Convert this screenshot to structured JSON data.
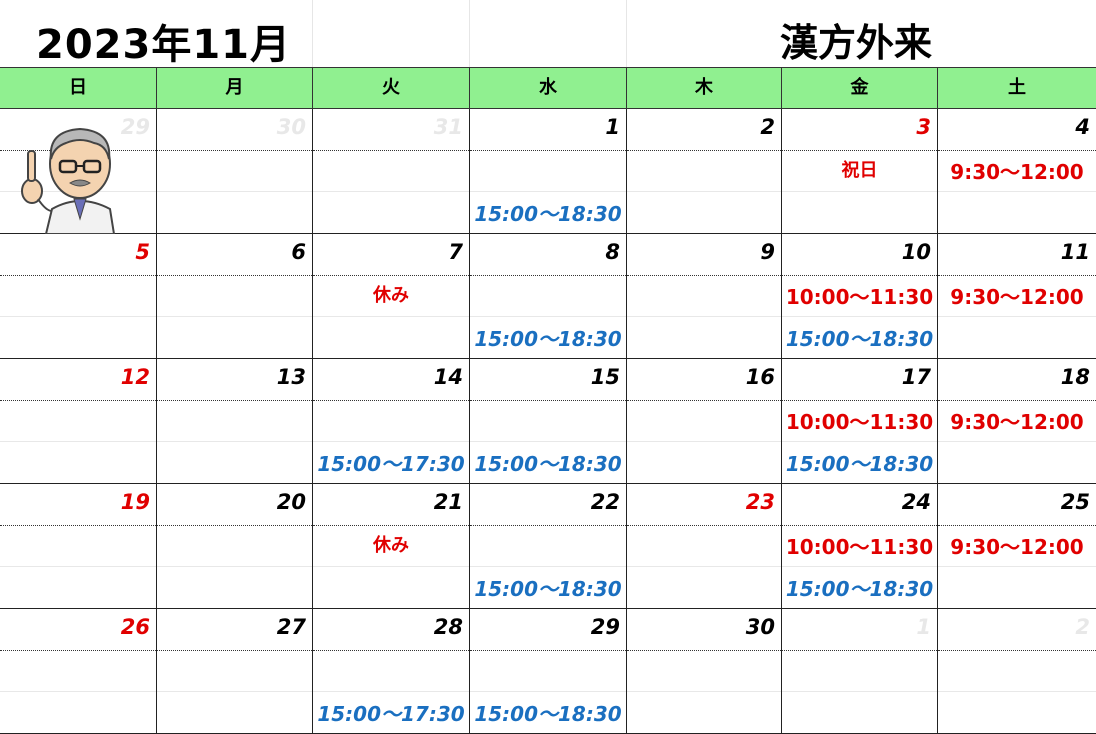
{
  "header": {
    "month_title": "2023年11月",
    "clinic_title": "漢方外来"
  },
  "weekdays": [
    "日",
    "月",
    "火",
    "水",
    "木",
    "金",
    "土"
  ],
  "colors": {
    "header_band": "#90f090",
    "holiday_red": "#e00000",
    "pm_blue": "#1a6fc0"
  },
  "weeks": [
    [
      {
        "day": "29",
        "tone": "faint",
        "am": "",
        "pm": ""
      },
      {
        "day": "30",
        "tone": "faint",
        "am": "",
        "pm": ""
      },
      {
        "day": "31",
        "tone": "faint",
        "am": "",
        "pm": ""
      },
      {
        "day": "1",
        "tone": "normal",
        "am": "",
        "pm": "15:00～18:30"
      },
      {
        "day": "2",
        "tone": "normal",
        "am": "",
        "pm": ""
      },
      {
        "day": "3",
        "tone": "red",
        "am": "祝日",
        "pm": ""
      },
      {
        "day": "4",
        "tone": "normal",
        "am": "9:30～12:00",
        "pm": ""
      }
    ],
    [
      {
        "day": "5",
        "tone": "red",
        "am": "",
        "pm": ""
      },
      {
        "day": "6",
        "tone": "normal",
        "am": "",
        "pm": ""
      },
      {
        "day": "7",
        "tone": "normal",
        "am": "休み",
        "pm": ""
      },
      {
        "day": "8",
        "tone": "normal",
        "am": "",
        "pm": "15:00～18:30"
      },
      {
        "day": "9",
        "tone": "normal",
        "am": "",
        "pm": ""
      },
      {
        "day": "10",
        "tone": "normal",
        "am": "10:00～11:30",
        "pm": "15:00～18:30"
      },
      {
        "day": "11",
        "tone": "normal",
        "am": "9:30～12:00",
        "pm": ""
      }
    ],
    [
      {
        "day": "12",
        "tone": "red",
        "am": "",
        "pm": ""
      },
      {
        "day": "13",
        "tone": "normal",
        "am": "",
        "pm": ""
      },
      {
        "day": "14",
        "tone": "normal",
        "am": "",
        "pm": "15:00～17:30"
      },
      {
        "day": "15",
        "tone": "normal",
        "am": "",
        "pm": "15:00～18:30"
      },
      {
        "day": "16",
        "tone": "normal",
        "am": "",
        "pm": ""
      },
      {
        "day": "17",
        "tone": "normal",
        "am": "10:00～11:30",
        "pm": "15:00～18:30"
      },
      {
        "day": "18",
        "tone": "normal",
        "am": "9:30～12:00",
        "pm": ""
      }
    ],
    [
      {
        "day": "19",
        "tone": "red",
        "am": "",
        "pm": ""
      },
      {
        "day": "20",
        "tone": "normal",
        "am": "",
        "pm": ""
      },
      {
        "day": "21",
        "tone": "normal",
        "am": "休み",
        "pm": ""
      },
      {
        "day": "22",
        "tone": "normal",
        "am": "",
        "pm": "15:00～18:30"
      },
      {
        "day": "23",
        "tone": "red",
        "am": "",
        "pm": ""
      },
      {
        "day": "24",
        "tone": "normal",
        "am": "10:00～11:30",
        "pm": "15:00～18:30"
      },
      {
        "day": "25",
        "tone": "normal",
        "am": "9:30～12:00",
        "pm": ""
      }
    ],
    [
      {
        "day": "26",
        "tone": "red",
        "am": "",
        "pm": ""
      },
      {
        "day": "27",
        "tone": "normal",
        "am": "",
        "pm": ""
      },
      {
        "day": "28",
        "tone": "normal",
        "am": "",
        "pm": "15:00～17:30"
      },
      {
        "day": "29",
        "tone": "normal",
        "am": "",
        "pm": "15:00～18:30"
      },
      {
        "day": "30",
        "tone": "normal",
        "am": "",
        "pm": ""
      },
      {
        "day": "1",
        "tone": "faint",
        "am": "",
        "pm": ""
      },
      {
        "day": "2",
        "tone": "faint",
        "am": "",
        "pm": ""
      }
    ]
  ]
}
